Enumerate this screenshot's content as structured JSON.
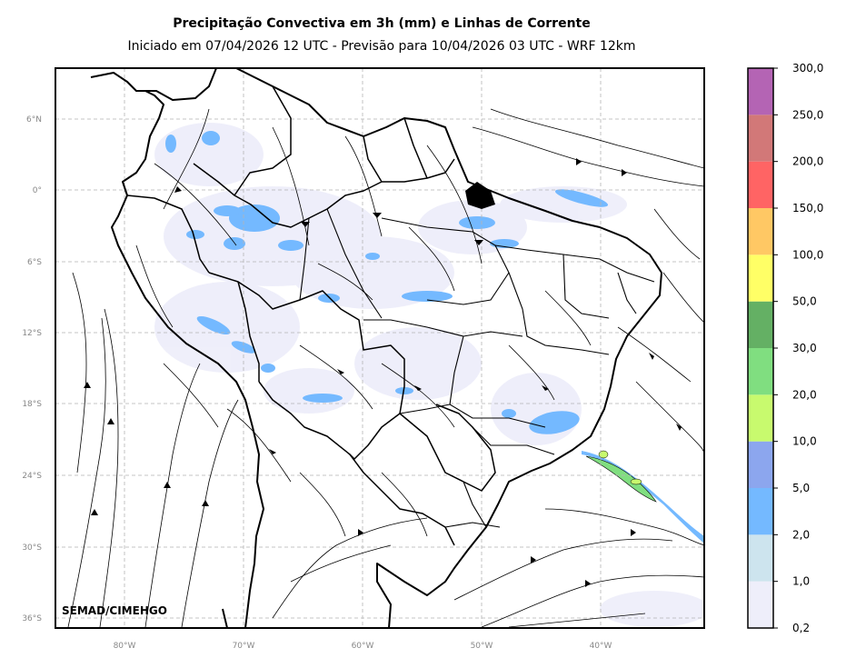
{
  "title": "Precipitação Convectiva em 3h (mm) e Linhas de Corrente",
  "subtitle": "Iniciado em 07/04/2026 12 UTC - Previsão para 10/04/2026 03 UTC - WRF 12km",
  "watermark": "SEMAD/CIMEHGO",
  "lat_ticks": [
    "6°N",
    "0°",
    "6°S",
    "12°S",
    "18°S",
    "24°S",
    "30°S",
    "36°S"
  ],
  "lon_ticks": [
    "80°W",
    "70°W",
    "60°W",
    "50°W",
    "40°W"
  ],
  "colorbar": {
    "levels": [
      "0,2",
      "1,0",
      "2,0",
      "5,0",
      "10,0",
      "20,0",
      "30,0",
      "50,0",
      "100,0",
      "150,0",
      "200,0",
      "250,0",
      "300,0"
    ],
    "colors": [
      "#eeeefa",
      "#cde4ee",
      "#74b9ff",
      "#8ca6ee",
      "#c8fa6e",
      "#80de80",
      "#64b064",
      "#ffff66",
      "#ffc864",
      "#ff6464",
      "#d27878",
      "#b464b4"
    ]
  }
}
